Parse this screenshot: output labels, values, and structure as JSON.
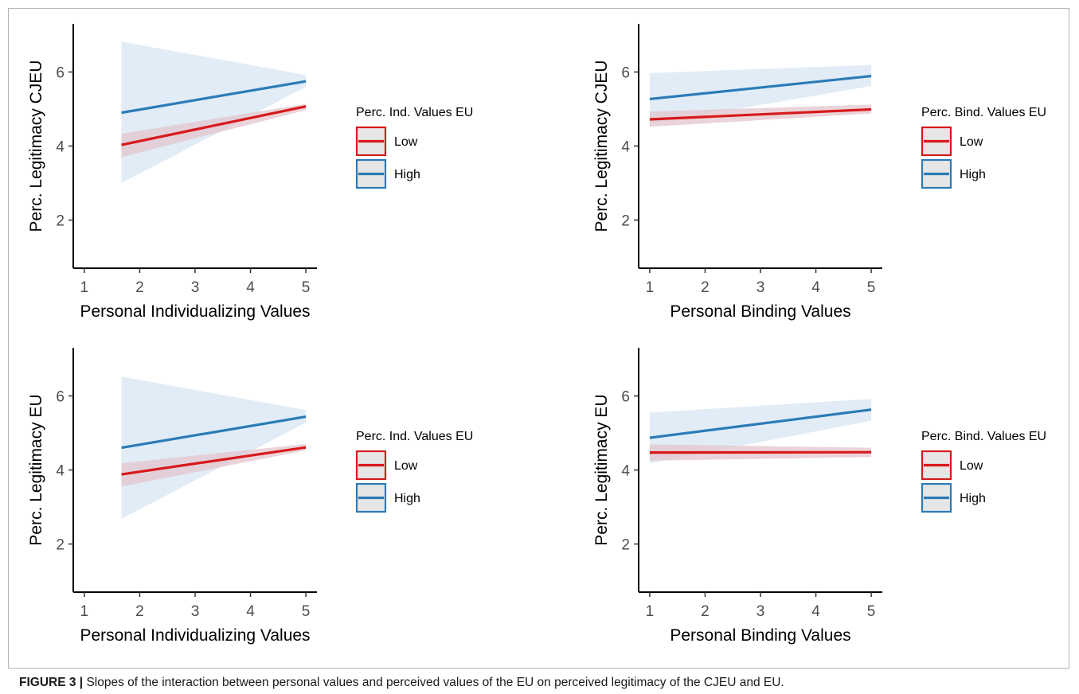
{
  "caption": {
    "label": "FIGURE 3",
    "separator": "|",
    "text": "Slopes of the interaction between personal values and perceived values of the EU on perceived legitimacy of the CJEU and EU."
  },
  "colors": {
    "low": "#d7191c",
    "high": "#2c7bb6",
    "low_band": "#e3c6cc",
    "high_band": "#dce9f5",
    "legend_bg": "#e6e6e6"
  },
  "chart_data": [
    {
      "type": "line",
      "xlabel": "Personal Individualizing Values",
      "ylabel": "Perc. Legitimacy CJEU",
      "xlim": [
        0.8,
        5.2
      ],
      "ylim": [
        0.7,
        7.3
      ],
      "xticks": [
        1,
        2,
        3,
        4,
        5
      ],
      "yticks": [
        2,
        4,
        6
      ],
      "legend": {
        "title": "Perc. Ind. Values EU",
        "position": "right"
      },
      "series": [
        {
          "name": "Low",
          "x": [
            1.67,
            5
          ],
          "y": [
            4.03,
            5.07
          ],
          "ci_lower": [
            3.7,
            4.97
          ],
          "ci_upper": [
            4.33,
            5.14
          ]
        },
        {
          "name": "High",
          "x": [
            1.67,
            5
          ],
          "y": [
            4.9,
            5.75
          ],
          "ci_lower": [
            3.0,
            5.6
          ],
          "ci_upper": [
            6.82,
            5.92
          ]
        }
      ]
    },
    {
      "type": "line",
      "xlabel": "Personal Binding Values",
      "ylabel": "Perc. Legitimacy CJEU",
      "xlim": [
        0.8,
        5.2
      ],
      "ylim": [
        0.7,
        7.3
      ],
      "xticks": [
        1,
        2,
        3,
        4,
        5
      ],
      "yticks": [
        2,
        4,
        6
      ],
      "legend": {
        "title": "Perc. Bind. Values EU",
        "position": "right"
      },
      "series": [
        {
          "name": "Low",
          "x": [
            1,
            5
          ],
          "y": [
            4.72,
            4.99
          ],
          "ci_lower": [
            4.52,
            4.88
          ],
          "ci_upper": [
            4.93,
            5.12
          ]
        },
        {
          "name": "High",
          "x": [
            1,
            5
          ],
          "y": [
            5.27,
            5.89
          ],
          "ci_lower": [
            4.6,
            5.62
          ],
          "ci_upper": [
            5.97,
            6.19
          ]
        }
      ]
    },
    {
      "type": "line",
      "xlabel": "Personal Individualizing Values",
      "ylabel": "Perc. Legitimacy EU",
      "xlim": [
        0.8,
        5.2
      ],
      "ylim": [
        0.7,
        7.3
      ],
      "xticks": [
        1,
        2,
        3,
        4,
        5
      ],
      "yticks": [
        2,
        4,
        6
      ],
      "legend": {
        "title": "Perc. Ind. Values EU",
        "position": "right"
      },
      "series": [
        {
          "name": "Low",
          "x": [
            1.67,
            5
          ],
          "y": [
            3.88,
            4.61
          ],
          "ci_lower": [
            3.55,
            4.53
          ],
          "ci_upper": [
            4.18,
            4.7
          ]
        },
        {
          "name": "High",
          "x": [
            1.67,
            5
          ],
          "y": [
            4.6,
            5.44
          ],
          "ci_lower": [
            2.68,
            5.28
          ],
          "ci_upper": [
            6.52,
            5.62
          ]
        }
      ]
    },
    {
      "type": "line",
      "xlabel": "Personal Binding Values",
      "ylabel": "Perc. Legitimacy EU",
      "xlim": [
        0.8,
        5.2
      ],
      "ylim": [
        0.7,
        7.3
      ],
      "xticks": [
        1,
        2,
        3,
        4,
        5
      ],
      "yticks": [
        2,
        4,
        6
      ],
      "legend": {
        "title": "Perc. Bind. Values EU",
        "position": "right"
      },
      "series": [
        {
          "name": "Low",
          "x": [
            1,
            5
          ],
          "y": [
            4.47,
            4.48
          ],
          "ci_lower": [
            4.25,
            4.35
          ],
          "ci_upper": [
            4.69,
            4.6
          ]
        },
        {
          "name": "High",
          "x": [
            1,
            5
          ],
          "y": [
            4.87,
            5.63
          ],
          "ci_lower": [
            4.18,
            5.33
          ],
          "ci_upper": [
            5.55,
            5.92
          ]
        }
      ]
    }
  ]
}
